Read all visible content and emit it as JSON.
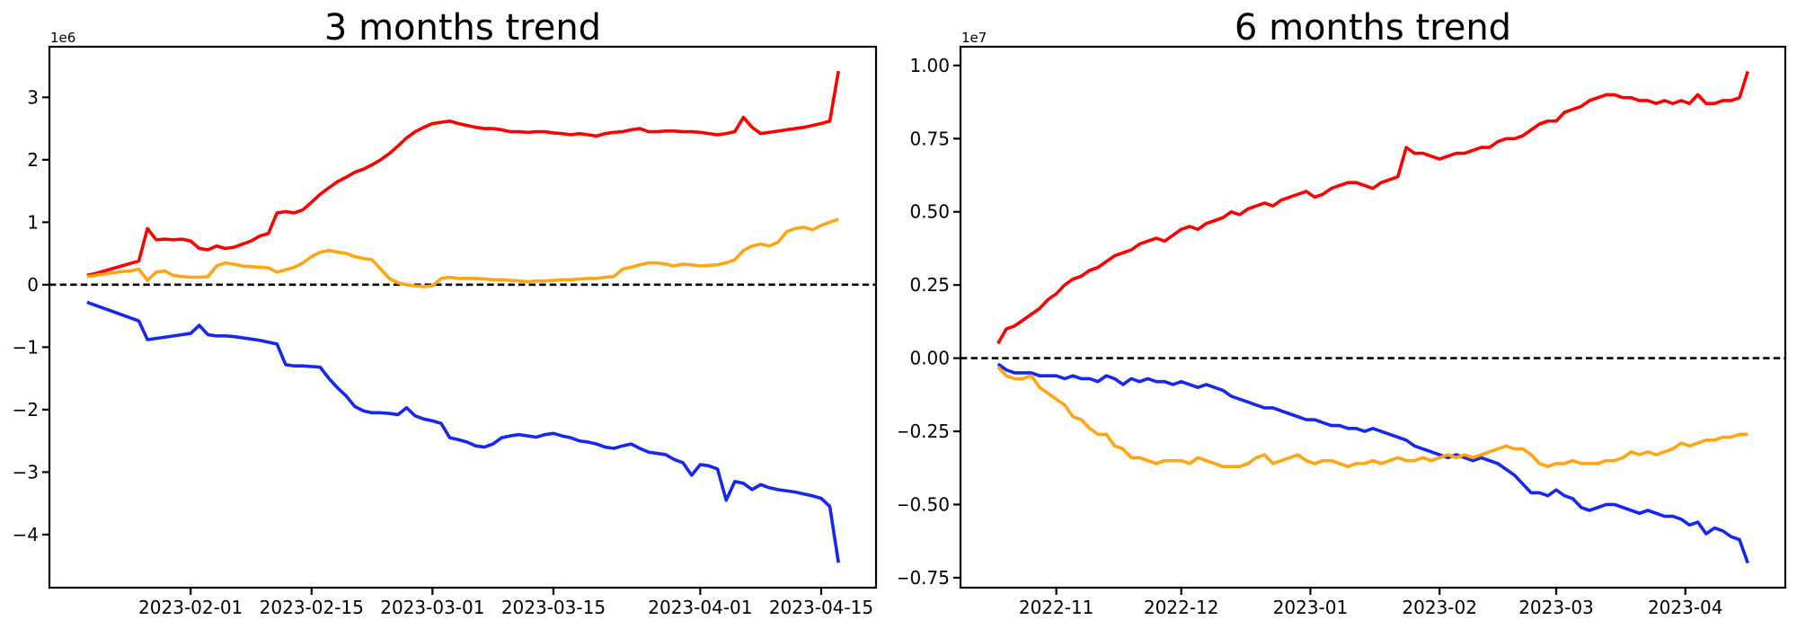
{
  "page": {
    "background": "#ffffff"
  },
  "chart_data": [
    {
      "type": "line",
      "title": "3 months trend",
      "offset_label": "1e6",
      "unit_scale": 1000000,
      "x_start_date": "2023-01-20",
      "x_span_days": 87,
      "x_margin_frac": 0.05,
      "ylim": [
        -4.85,
        3.81
      ],
      "grid": false,
      "legend": "none",
      "zero_line": {
        "show": true,
        "color": "#000000",
        "style": "dashed"
      },
      "yticks": [
        {
          "v": 3,
          "label": "3"
        },
        {
          "v": 2,
          "label": "2"
        },
        {
          "v": 1,
          "label": "1"
        },
        {
          "v": 0,
          "label": "0"
        },
        {
          "v": -1,
          "label": "−1"
        },
        {
          "v": -2,
          "label": "−2"
        },
        {
          "v": -3,
          "label": "−3"
        },
        {
          "v": -4,
          "label": "−4"
        }
      ],
      "xticks": [
        {
          "day": 12,
          "label": "2023-02-01"
        },
        {
          "day": 26,
          "label": "2023-02-15"
        },
        {
          "day": 40,
          "label": "2023-03-01"
        },
        {
          "day": 54,
          "label": "2023-03-15"
        },
        {
          "day": 71,
          "label": "2023-04-01"
        },
        {
          "day": 85,
          "label": "2023-04-15"
        }
      ],
      "series": [
        {
          "name": "red",
          "color": "#fe0000",
          "day_step": 1,
          "values": [
            0.15,
            0.18,
            0.22,
            0.26,
            0.3,
            0.34,
            0.38,
            0.9,
            0.72,
            0.73,
            0.72,
            0.73,
            0.7,
            0.58,
            0.56,
            0.62,
            0.58,
            0.6,
            0.65,
            0.7,
            0.78,
            0.82,
            1.15,
            1.17,
            1.15,
            1.2,
            1.32,
            1.45,
            1.55,
            1.65,
            1.72,
            1.8,
            1.85,
            1.92,
            2.0,
            2.1,
            2.22,
            2.35,
            2.45,
            2.52,
            2.58,
            2.6,
            2.62,
            2.58,
            2.55,
            2.52,
            2.5,
            2.5,
            2.48,
            2.45,
            2.45,
            2.44,
            2.45,
            2.45,
            2.43,
            2.42,
            2.4,
            2.42,
            2.4,
            2.38,
            2.42,
            2.44,
            2.45,
            2.48,
            2.5,
            2.45,
            2.45,
            2.46,
            2.46,
            2.45,
            2.45,
            2.44,
            2.42,
            2.4,
            2.42,
            2.45,
            2.68,
            2.52,
            2.42,
            2.44,
            2.46,
            2.48,
            2.5,
            2.52,
            2.55,
            2.58,
            2.62,
            3.42
          ]
        },
        {
          "name": "blue",
          "color": "#1428f0",
          "day_step": 1,
          "values": [
            -0.28,
            -0.33,
            -0.38,
            -0.43,
            -0.48,
            -0.53,
            -0.58,
            -0.88,
            -0.86,
            -0.84,
            -0.82,
            -0.8,
            -0.78,
            -0.65,
            -0.8,
            -0.82,
            -0.82,
            -0.83,
            -0.85,
            -0.87,
            -0.89,
            -0.92,
            -0.95,
            -1.28,
            -1.3,
            -1.3,
            -1.31,
            -1.32,
            -1.5,
            -1.65,
            -1.78,
            -1.95,
            -2.02,
            -2.05,
            -2.05,
            -2.06,
            -2.08,
            -1.97,
            -2.1,
            -2.15,
            -2.18,
            -2.22,
            -2.45,
            -2.48,
            -2.52,
            -2.58,
            -2.6,
            -2.55,
            -2.45,
            -2.42,
            -2.4,
            -2.42,
            -2.44,
            -2.4,
            -2.38,
            -2.42,
            -2.45,
            -2.5,
            -2.52,
            -2.55,
            -2.6,
            -2.62,
            -2.58,
            -2.55,
            -2.62,
            -2.68,
            -2.7,
            -2.72,
            -2.8,
            -2.85,
            -3.05,
            -2.88,
            -2.9,
            -2.95,
            -3.45,
            -3.15,
            -3.18,
            -3.28,
            -3.2,
            -3.25,
            -3.28,
            -3.3,
            -3.32,
            -3.35,
            -3.38,
            -3.42,
            -3.55,
            -4.45
          ]
        },
        {
          "name": "orange",
          "color": "#ffa514",
          "day_step": 1,
          "values": [
            0.13,
            0.15,
            0.17,
            0.19,
            0.21,
            0.22,
            0.25,
            0.07,
            0.2,
            0.22,
            0.15,
            0.13,
            0.12,
            0.12,
            0.13,
            0.3,
            0.35,
            0.33,
            0.3,
            0.29,
            0.28,
            0.27,
            0.2,
            0.24,
            0.28,
            0.35,
            0.45,
            0.52,
            0.55,
            0.52,
            0.5,
            0.45,
            0.42,
            0.4,
            0.25,
            0.1,
            0.03,
            0.0,
            -0.02,
            -0.03,
            -0.02,
            0.1,
            0.12,
            0.1,
            0.1,
            0.1,
            0.09,
            0.08,
            0.08,
            0.07,
            0.06,
            0.05,
            0.06,
            0.06,
            0.07,
            0.08,
            0.08,
            0.09,
            0.1,
            0.1,
            0.12,
            0.13,
            0.25,
            0.28,
            0.32,
            0.35,
            0.35,
            0.33,
            0.3,
            0.33,
            0.32,
            0.3,
            0.31,
            0.32,
            0.35,
            0.4,
            0.55,
            0.62,
            0.65,
            0.62,
            0.68,
            0.85,
            0.9,
            0.92,
            0.88,
            0.95,
            1.0,
            1.05
          ]
        }
      ]
    },
    {
      "type": "line",
      "title": "6 months trend",
      "offset_label": "1e7",
      "unit_scale": 10000000,
      "x_start_date": "2022-10-18",
      "x_span_days": 180,
      "x_margin_frac": 0.05,
      "ylim": [
        -0.784,
        1.064
      ],
      "grid": false,
      "legend": "none",
      "zero_line": {
        "show": true,
        "color": "#000000",
        "style": "dashed"
      },
      "yticks": [
        {
          "v": 1.0,
          "label": "1.00"
        },
        {
          "v": 0.75,
          "label": "0.75"
        },
        {
          "v": 0.5,
          "label": "0.50"
        },
        {
          "v": 0.25,
          "label": "0.25"
        },
        {
          "v": 0.0,
          "label": "0.00"
        },
        {
          "v": -0.25,
          "label": "−0.25"
        },
        {
          "v": -0.5,
          "label": "−0.50"
        },
        {
          "v": -0.75,
          "label": "−0.75"
        }
      ],
      "xticks": [
        {
          "day": 14,
          "label": "2022-11"
        },
        {
          "day": 44,
          "label": "2022-12"
        },
        {
          "day": 75,
          "label": "2023-01"
        },
        {
          "day": 106,
          "label": "2023-02"
        },
        {
          "day": 134,
          "label": "2023-03"
        },
        {
          "day": 165,
          "label": "2023-04"
        }
      ],
      "series": [
        {
          "name": "red",
          "color": "#fe0000",
          "day_step": 2,
          "values": [
            0.05,
            0.1,
            0.11,
            0.13,
            0.15,
            0.17,
            0.2,
            0.22,
            0.25,
            0.27,
            0.28,
            0.3,
            0.31,
            0.33,
            0.35,
            0.36,
            0.37,
            0.39,
            0.4,
            0.41,
            0.4,
            0.42,
            0.44,
            0.45,
            0.44,
            0.46,
            0.47,
            0.48,
            0.5,
            0.49,
            0.51,
            0.52,
            0.53,
            0.52,
            0.54,
            0.55,
            0.56,
            0.57,
            0.55,
            0.56,
            0.58,
            0.59,
            0.6,
            0.6,
            0.59,
            0.58,
            0.6,
            0.61,
            0.62,
            0.72,
            0.7,
            0.7,
            0.69,
            0.68,
            0.69,
            0.7,
            0.7,
            0.71,
            0.72,
            0.72,
            0.74,
            0.75,
            0.75,
            0.76,
            0.78,
            0.8,
            0.81,
            0.81,
            0.84,
            0.85,
            0.86,
            0.88,
            0.89,
            0.9,
            0.9,
            0.89,
            0.89,
            0.88,
            0.88,
            0.87,
            0.88,
            0.87,
            0.88,
            0.87,
            0.9,
            0.87,
            0.87,
            0.88,
            0.88,
            0.89,
            0.98
          ]
        },
        {
          "name": "blue",
          "color": "#1428f0",
          "day_step": 2,
          "values": [
            -0.02,
            -0.04,
            -0.05,
            -0.05,
            -0.05,
            -0.06,
            -0.06,
            -0.06,
            -0.07,
            -0.06,
            -0.07,
            -0.07,
            -0.08,
            -0.06,
            -0.07,
            -0.09,
            -0.07,
            -0.08,
            -0.07,
            -0.08,
            -0.08,
            -0.09,
            -0.08,
            -0.09,
            -0.1,
            -0.09,
            -0.1,
            -0.11,
            -0.13,
            -0.14,
            -0.15,
            -0.16,
            -0.17,
            -0.17,
            -0.18,
            -0.19,
            -0.2,
            -0.21,
            -0.21,
            -0.22,
            -0.23,
            -0.23,
            -0.24,
            -0.24,
            -0.25,
            -0.24,
            -0.25,
            -0.26,
            -0.27,
            -0.28,
            -0.3,
            -0.31,
            -0.32,
            -0.33,
            -0.34,
            -0.33,
            -0.34,
            -0.35,
            -0.34,
            -0.35,
            -0.36,
            -0.38,
            -0.4,
            -0.43,
            -0.46,
            -0.46,
            -0.47,
            -0.45,
            -0.47,
            -0.48,
            -0.51,
            -0.52,
            -0.51,
            -0.5,
            -0.5,
            -0.51,
            -0.52,
            -0.53,
            -0.52,
            -0.53,
            -0.54,
            -0.54,
            -0.55,
            -0.57,
            -0.56,
            -0.6,
            -0.58,
            -0.59,
            -0.61,
            -0.62,
            -0.7
          ]
        },
        {
          "name": "orange",
          "color": "#ffa514",
          "day_step": 2,
          "values": [
            -0.03,
            -0.06,
            -0.07,
            -0.07,
            -0.06,
            -0.1,
            -0.12,
            -0.14,
            -0.16,
            -0.2,
            -0.21,
            -0.24,
            -0.26,
            -0.26,
            -0.3,
            -0.31,
            -0.34,
            -0.34,
            -0.35,
            -0.36,
            -0.35,
            -0.35,
            -0.35,
            -0.36,
            -0.34,
            -0.35,
            -0.36,
            -0.37,
            -0.37,
            -0.37,
            -0.36,
            -0.34,
            -0.33,
            -0.36,
            -0.35,
            -0.34,
            -0.33,
            -0.35,
            -0.36,
            -0.35,
            -0.35,
            -0.36,
            -0.37,
            -0.36,
            -0.36,
            -0.35,
            -0.36,
            -0.35,
            -0.34,
            -0.35,
            -0.35,
            -0.34,
            -0.35,
            -0.34,
            -0.33,
            -0.34,
            -0.33,
            -0.34,
            -0.33,
            -0.32,
            -0.31,
            -0.3,
            -0.31,
            -0.31,
            -0.33,
            -0.36,
            -0.37,
            -0.36,
            -0.36,
            -0.35,
            -0.36,
            -0.36,
            -0.36,
            -0.35,
            -0.35,
            -0.34,
            -0.32,
            -0.33,
            -0.32,
            -0.33,
            -0.32,
            -0.31,
            -0.29,
            -0.3,
            -0.29,
            -0.28,
            -0.28,
            -0.27,
            -0.27,
            -0.26,
            -0.26
          ]
        }
      ]
    }
  ]
}
